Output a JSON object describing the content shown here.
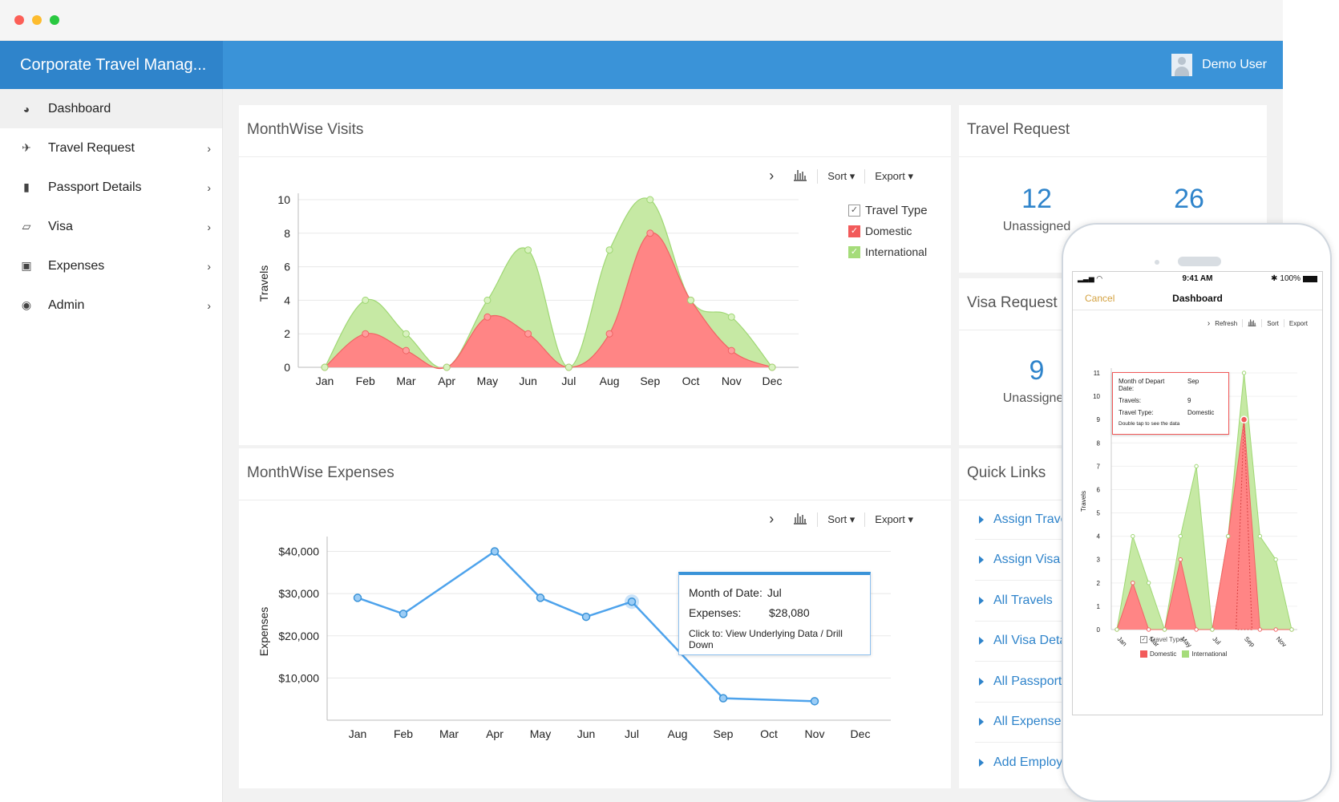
{
  "colors": {
    "header": "#3a93d8",
    "brand": "#2f84cb",
    "domestic": "#ff8585",
    "international": "#c6e9a4",
    "line": "#4ea3ec",
    "link": "#2f84cb"
  },
  "app": {
    "title": "Corporate Travel Manag...",
    "user": "Demo User"
  },
  "sidebar": {
    "items": [
      {
        "label": "Dashboard",
        "icon": "dashboard-icon"
      },
      {
        "label": "Travel Request",
        "icon": "plane-icon"
      },
      {
        "label": "Passport Details",
        "icon": "book-icon"
      },
      {
        "label": "Visa",
        "icon": "map-icon"
      },
      {
        "label": "Expenses",
        "icon": "money-icon"
      },
      {
        "label": "Admin",
        "icon": "lock-icon"
      }
    ]
  },
  "toolbar": {
    "sort": "Sort",
    "export": "Export"
  },
  "visits": {
    "title": "MonthWise Visits",
    "legend": {
      "title": "Travel Type",
      "domestic": "Domestic",
      "international": "International"
    }
  },
  "expenses": {
    "title": "MonthWise Expenses",
    "tooltip": {
      "month_label": "Month of Date:",
      "month_value": "Jul",
      "exp_label": "Expenses:",
      "exp_value": "$28,080",
      "click_label": "Click to:",
      "click_text": "View Underlying Data / Drill Down"
    }
  },
  "travel_request": {
    "title": "Travel Request",
    "unassigned_num": "12",
    "unassigned_label": "Unassigned",
    "second_num": "26"
  },
  "visa_request": {
    "title": "Visa Request",
    "unassigned_num": "9",
    "unassigned_label": "Unassigned"
  },
  "quick_links": {
    "title": "Quick Links",
    "items": [
      "Assign Trave",
      "Assign Visa",
      "All Travels",
      "All Visa Deta",
      "All Passport",
      "All Expense",
      "Add Employ"
    ]
  },
  "phone": {
    "time": "9:41 AM",
    "battery": "100%",
    "cancel": "Cancel",
    "title": "Dashboard",
    "refresh": "Refresh",
    "sort": "Sort",
    "export": "Export",
    "ylabel": "Travels",
    "legend_title": "Travel Type",
    "legend_domestic": "Domestic",
    "legend_international": "International",
    "tooltip": {
      "l1": "Month of Depart",
      "l1b": "Date:",
      "v1": "Sep",
      "l2": "Travels:",
      "v2": "9",
      "l3": "Travel Type:",
      "v3": "Domestic",
      "hint": "Double tap to see the data"
    }
  },
  "chart_data": [
    {
      "type": "area",
      "categories": [
        "Jan",
        "Feb",
        "Mar",
        "Apr",
        "May",
        "Jun",
        "Jul",
        "Aug",
        "Sep",
        "Oct",
        "Nov",
        "Dec"
      ],
      "series": [
        {
          "name": "Domestic",
          "values": [
            0,
            2,
            1,
            0,
            3,
            2,
            0,
            2,
            8,
            4,
            1,
            0
          ]
        },
        {
          "name": "International",
          "values": [
            0,
            4,
            2,
            0,
            4,
            7,
            0,
            7,
            10,
            4,
            3,
            0
          ]
        }
      ],
      "ylabel": "Travels",
      "ylim": [
        0,
        10
      ],
      "yticks": [
        0,
        2,
        4,
        6,
        8,
        10
      ],
      "legend": "top-right"
    },
    {
      "type": "line",
      "categories": [
        "Jan",
        "Feb",
        "Mar",
        "Apr",
        "May",
        "Jun",
        "Jul",
        "Aug",
        "Sep",
        "Oct",
        "Nov",
        "Dec"
      ],
      "series": [
        {
          "name": "Expenses",
          "values": [
            29000,
            25200,
            null,
            40000,
            29000,
            24500,
            28080,
            null,
            5200,
            null,
            4500,
            null
          ]
        }
      ],
      "ylabel": "Expenses",
      "ylim": [
        0,
        42000
      ],
      "yticks": [
        10000,
        20000,
        30000,
        40000
      ],
      "ytick_labels": [
        "$10,000",
        "$20,000",
        "$30,000",
        "$40,000"
      ]
    },
    {
      "type": "area",
      "categories": [
        "Jan",
        "Feb",
        "Mar",
        "Apr",
        "May",
        "Jun",
        "Jul",
        "Aug",
        "Sep",
        "Oct",
        "Nov",
        "Dec"
      ],
      "xtick_labels": [
        "Jan",
        "Mar",
        "May",
        "Jul",
        "Sep",
        "Nov"
      ],
      "series": [
        {
          "name": "Domestic",
          "values": [
            0,
            2,
            0,
            0,
            3,
            0,
            0,
            4,
            9,
            0,
            0,
            0
          ]
        },
        {
          "name": "International",
          "values": [
            0,
            4,
            2,
            0,
            4,
            7,
            0,
            4,
            11,
            4,
            3,
            0
          ]
        }
      ],
      "ylabel": "Travels",
      "ylim": [
        0,
        11
      ],
      "yticks": [
        0,
        1,
        2,
        3,
        4,
        5,
        6,
        7,
        8,
        9,
        10,
        11
      ]
    }
  ]
}
